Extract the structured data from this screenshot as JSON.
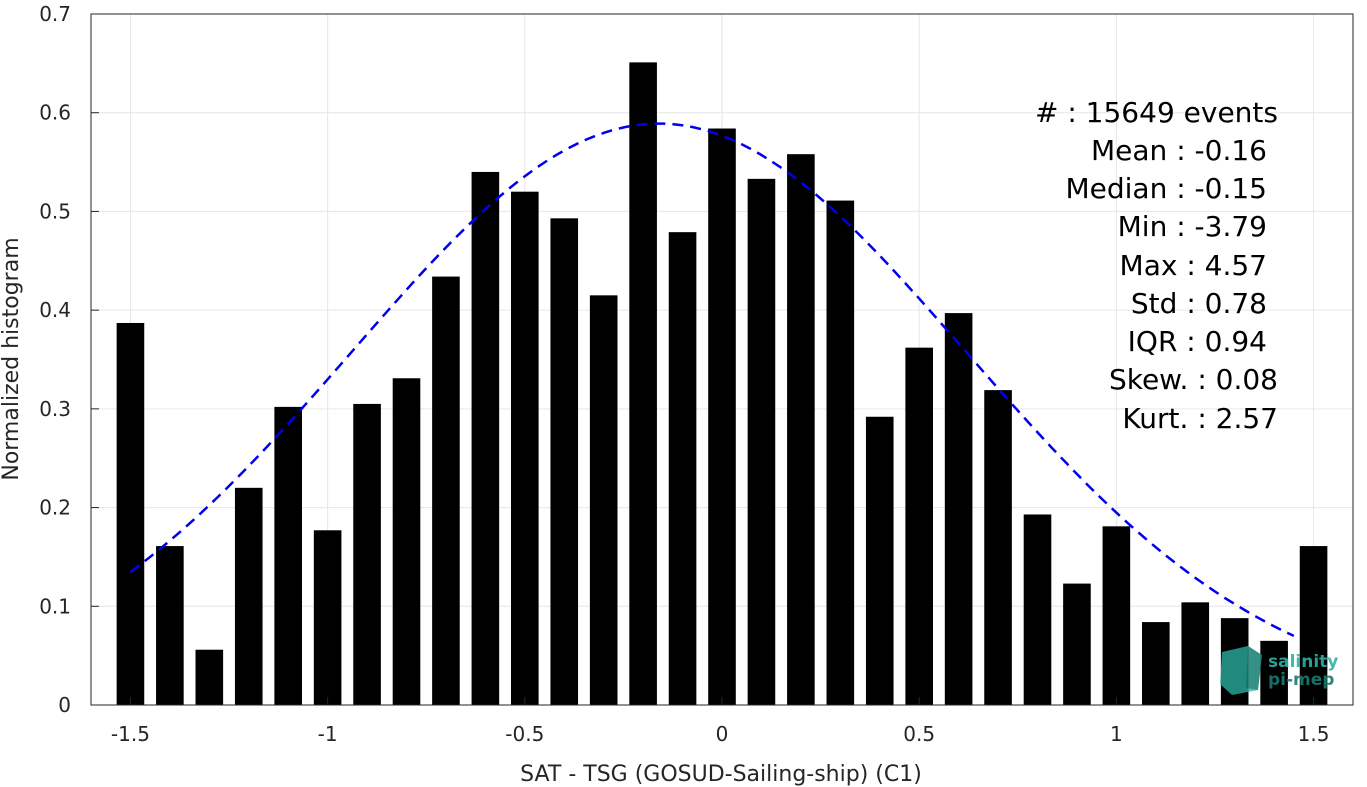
{
  "chart_data": {
    "type": "bar",
    "xlabel": "SAT - TSG (GOSUD-Sailing-ship) (C1)",
    "ylabel": "Normalized histogram",
    "xlim": [
      -1.6,
      1.6
    ],
    "ylim": [
      0,
      0.7
    ],
    "xticks": [
      -1.5,
      -1,
      -0.5,
      0,
      0.5,
      1,
      1.5
    ],
    "xtick_labels": [
      "-1.5",
      "-1",
      "-0.5",
      "0",
      "0.5",
      "1",
      "1.5"
    ],
    "yticks": [
      0,
      0.1,
      0.2,
      0.3,
      0.4,
      0.5,
      0.6,
      0.7
    ],
    "ytick_labels": [
      "0",
      "0.1",
      "0.2",
      "0.3",
      "0.4",
      "0.5",
      "0.6",
      "0.7"
    ],
    "grid": true,
    "bar_color": "#000000",
    "bar_width": 0.07,
    "x": [
      -1.5,
      -1.4,
      -1.3,
      -1.2,
      -1.1,
      -1.0,
      -0.9,
      -0.8,
      -0.7,
      -0.6,
      -0.5,
      -0.4,
      -0.3,
      -0.2,
      -0.1,
      0.0,
      0.1,
      0.2,
      0.3,
      0.4,
      0.5,
      0.6,
      0.7,
      0.8,
      0.9,
      1.0,
      1.1,
      1.2,
      1.3,
      1.4,
      1.5
    ],
    "values": [
      0.387,
      0.161,
      0.056,
      0.22,
      0.302,
      0.177,
      0.305,
      0.331,
      0.434,
      0.54,
      0.52,
      0.493,
      0.415,
      0.651,
      0.479,
      0.584,
      0.533,
      0.558,
      0.511,
      0.292,
      0.362,
      0.397,
      0.319,
      0.193,
      0.123,
      0.181,
      0.084,
      0.104,
      0.088,
      0.065,
      0.161
    ],
    "fit": {
      "type": "gaussian",
      "mean": -0.16,
      "std": 0.78,
      "peak": 0.589,
      "x_range": [
        -1.5,
        1.45
      ],
      "color": "#0000ee",
      "style": "dashed"
    },
    "stats": [
      "#  : 15649 events",
      "Mean : -0.16",
      "Median : -0.15",
      "Min : -3.79",
      "Max : 4.57",
      "Std : 0.78",
      "IQR : 0.94",
      "Skew. : 0.08",
      "Kurt. : 2.57"
    ]
  },
  "logo": {
    "line1": "salinity",
    "line2": "pi-mep",
    "color1": "#2bb3a3",
    "color2": "#1a7a70"
  }
}
